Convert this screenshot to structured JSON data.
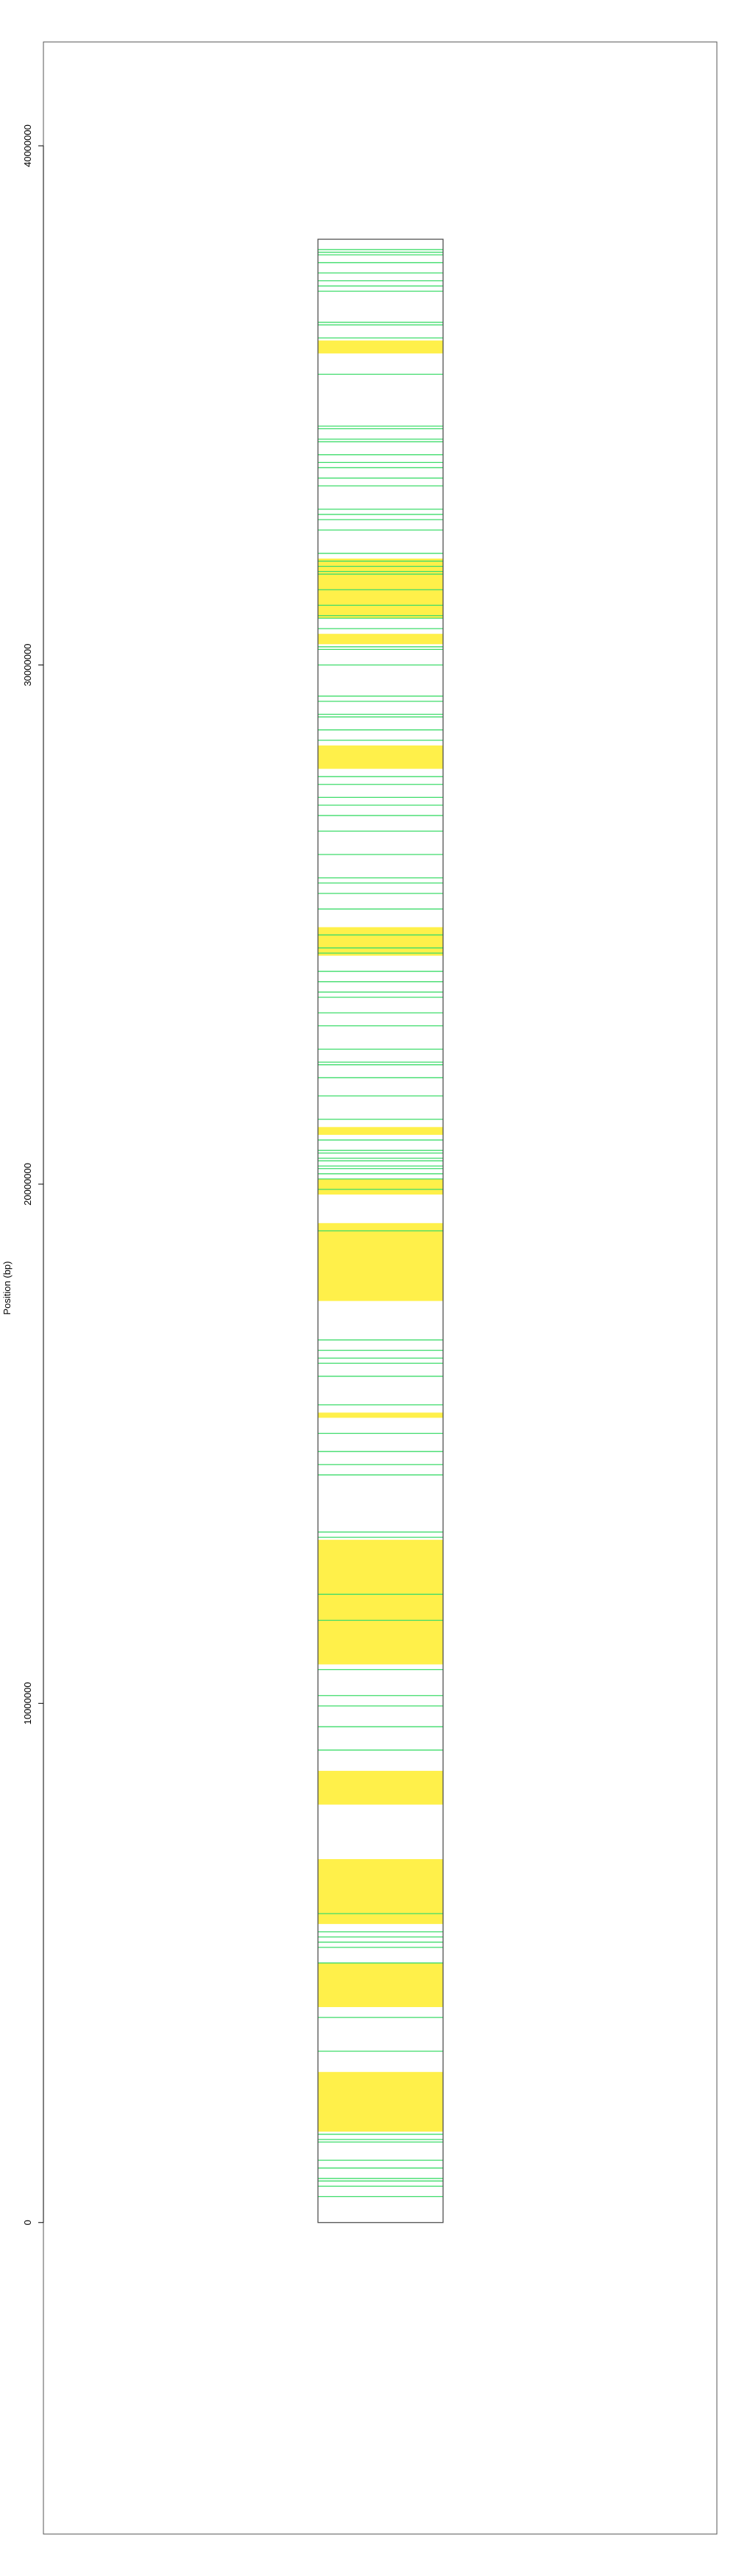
{
  "chart_data": {
    "type": "chromosome-ideogram",
    "title": "",
    "xlabel": "",
    "ylabel": "Position (bp)",
    "ylim": [
      -6000000,
      42000000
    ],
    "yticks": [
      0,
      10000000,
      20000000,
      30000000,
      40000000
    ],
    "ytick_labels": [
      "0",
      "10000000",
      "20000000",
      "30000000",
      "40000000"
    ],
    "grid": false,
    "legend": "none",
    "chromosome": {
      "start": 0,
      "end": 38200000
    },
    "colors": {
      "region_fill": "#fff04a",
      "marker_line": "#3ddc6a",
      "chromosome_border": "#444444",
      "plot_border": "#555555",
      "axis": "#000000"
    },
    "regions": [
      {
        "start": 1750000,
        "end": 2900000
      },
      {
        "start": 4150000,
        "end": 5000000
      },
      {
        "start": 5750000,
        "end": 7000000
      },
      {
        "start": 8050000,
        "end": 8700000
      },
      {
        "start": 10750000,
        "end": 13150000
      },
      {
        "start": 17750000,
        "end": 19250000
      },
      {
        "start": 19800000,
        "end": 20100000
      },
      {
        "start": 20950000,
        "end": 21100000
      },
      {
        "start": 15500000,
        "end": 15600000
      },
      {
        "start": 24400000,
        "end": 24950000
      },
      {
        "start": 28000000,
        "end": 28450000
      },
      {
        "start": 30400000,
        "end": 30600000
      },
      {
        "start": 30900000,
        "end": 32050000
      },
      {
        "start": 36000000,
        "end": 36250000
      }
    ],
    "markers": [
      500000,
      700000,
      800000,
      850000,
      1050000,
      1200000,
      1550000,
      1600000,
      1700000,
      3300000,
      3950000,
      5000000,
      5300000,
      5400000,
      5500000,
      5600000,
      5950000,
      9100000,
      9550000,
      9950000,
      10150000,
      10650000,
      11600000,
      12100000,
      13200000,
      13300000,
      14400000,
      14600000,
      14850000,
      15200000,
      15750000,
      16300000,
      16550000,
      16650000,
      16800000,
      17000000,
      19100000,
      19900000,
      20100000,
      20200000,
      20300000,
      20350000,
      20450000,
      20500000,
      20600000,
      20650000,
      20850000,
      21250000,
      21700000,
      22050000,
      22300000,
      22350000,
      22600000,
      23050000,
      23300000,
      23600000,
      23700000,
      23900000,
      24100000,
      24450000,
      24550000,
      24800000,
      25300000,
      25600000,
      25800000,
      25900000,
      26350000,
      26800000,
      27100000,
      27300000,
      27450000,
      27700000,
      27850000,
      28550000,
      28750000,
      29000000,
      29050000,
      29300000,
      29400000,
      30000000,
      30300000,
      30350000,
      30700000,
      30900000,
      30950000,
      31150000,
      31450000,
      31750000,
      31800000,
      31900000,
      32000000,
      32150000,
      32600000,
      32800000,
      32900000,
      33000000,
      33450000,
      33600000,
      33800000,
      33900000,
      34050000,
      34300000,
      34350000,
      34550000,
      34600000,
      35600000,
      36300000,
      36550000,
      36600000,
      37200000,
      37300000,
      37400000,
      37550000,
      37900000,
      37750000,
      37950000,
      38000000
    ]
  }
}
